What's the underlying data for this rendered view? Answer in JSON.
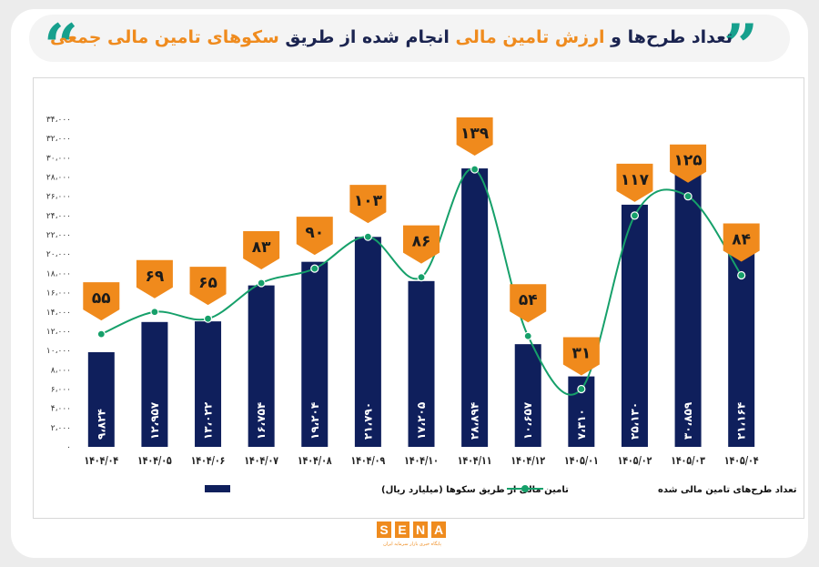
{
  "title": {
    "part1": "تعداد طرح‌ها و ",
    "part2": "ارزش تامین مالی",
    "part3": " انجام شده از طریق ",
    "part4": "سکوهای تامین مالی جمعی"
  },
  "colors": {
    "bar": "#0f1f5c",
    "line": "#16a06a",
    "marker": "#f08a1c",
    "accent": "#16a08d"
  },
  "icons": {
    "left": "double-quote-open-icon",
    "right": "double-quote-close-icon"
  },
  "logo": {
    "letters": [
      "S",
      "E",
      "N",
      "A"
    ],
    "tagline": "پایگاه خبری بازار سرمایه ایران"
  },
  "chart_data": {
    "type": "bar",
    "categories": [
      "۱۴۰۴/۰۴",
      "۱۴۰۴/۰۵",
      "۱۴۰۴/۰۶",
      "۱۴۰۴/۰۷",
      "۱۴۰۴/۰۸",
      "۱۴۰۴/۰۹",
      "۱۴۰۴/۱۰",
      "۱۴۰۴/۱۱",
      "۱۴۰۴/۱۲",
      "۱۴۰۵/۰۱",
      "۱۴۰۵/۰۲",
      "۱۴۰۵/۰۳",
      "۱۴۰۵/۰۴"
    ],
    "series": [
      {
        "name": "تامین مالی از طریق سکوها (میلیارد ریال)",
        "type": "bar",
        "values": [
          9824,
          12957,
          13022,
          16754,
          19204,
          21790,
          17205,
          28894,
          10657,
          7310,
          25130,
          30859,
          21164
        ],
        "value_labels": [
          "۹،۸۲۴",
          "۱۲،۹۵۷",
          "۱۳،۰۲۲",
          "۱۶،۷۵۴",
          "۱۹،۲۰۴",
          "۲۱،۷۹۰",
          "۱۷،۲۰۵",
          "۲۸،۸۹۴",
          "۱۰،۶۵۷",
          "۷،۳۱۰",
          "۲۵،۱۳۰",
          "۳۰،۸۵۹",
          "۲۱،۱۶۴"
        ]
      },
      {
        "name": "تعداد طرح‌های تامین مالی شده",
        "type": "line",
        "values": [
          55,
          69,
          65,
          83,
          90,
          103,
          86,
          139,
          54,
          31,
          117,
          125,
          84
        ],
        "value_labels": [
          "۵۵",
          "۶۹",
          "۶۵",
          "۸۳",
          "۹۰",
          "۱۰۳",
          "۸۶",
          "۱۳۹",
          "۵۴",
          "۳۱",
          "۱۱۷",
          "۱۲۵",
          "۸۴"
        ],
        "plotted_y": [
          11700,
          14000,
          13300,
          17000,
          18500,
          21800,
          17600,
          28800,
          11500,
          6000,
          24000,
          26000,
          17800
        ]
      }
    ],
    "yticks": [
      0,
      2000,
      4000,
      6000,
      8000,
      10000,
      12000,
      14000,
      16000,
      18000,
      20000,
      22000,
      24000,
      26000,
      28000,
      30000,
      32000,
      34000
    ],
    "ytick_labels": [
      "۰",
      "۲،۰۰۰",
      "۴،۰۰۰",
      "۶،۰۰۰",
      "۸،۰۰۰",
      "۱۰،۰۰۰",
      "۱۲،۰۰۰",
      "۱۴،۰۰۰",
      "۱۶،۰۰۰",
      "۱۸،۰۰۰",
      "۲۰،۰۰۰",
      "۲۲،۰۰۰",
      "۲۴،۰۰۰",
      "۲۶،۰۰۰",
      "۲۸،۰۰۰",
      "۳۰،۰۰۰",
      "۳۲،۰۰۰",
      "۳۴،۰۰۰"
    ],
    "ylim": [
      0,
      34000
    ],
    "grid": false,
    "legend_position": "bottom"
  }
}
